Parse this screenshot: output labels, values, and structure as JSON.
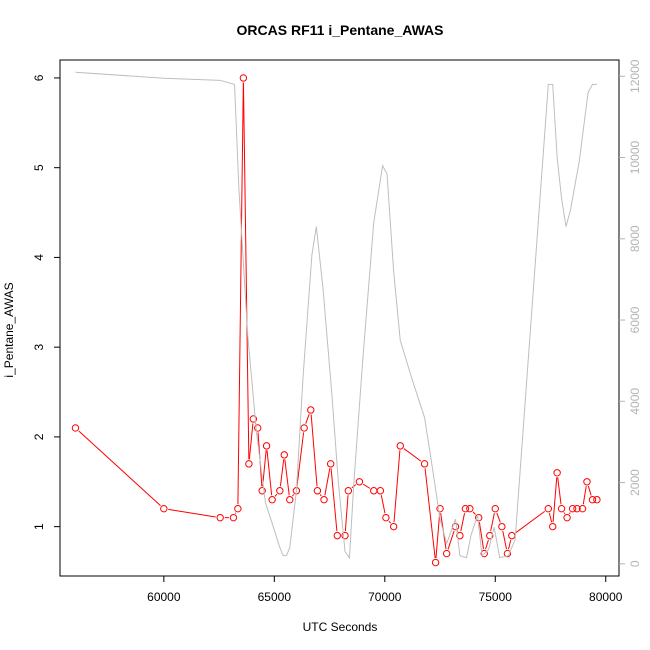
{
  "chart_data": {
    "type": "line",
    "title": "ORCAS RF11 i_Pentane_AWAS",
    "xlabel": "UTC Seconds",
    "ylabel": "i_Pentane_AWAS",
    "xlim": [
      55300,
      80600
    ],
    "ylim": [
      0.45,
      6.2
    ],
    "y2lim": [
      -300,
      12400
    ],
    "grid": false,
    "x_ticks": [
      60000,
      65000,
      70000,
      75000,
      80000
    ],
    "y_ticks": [
      1,
      2,
      3,
      4,
      5,
      6
    ],
    "y2_ticks": [
      0,
      2000,
      4000,
      6000,
      8000,
      10000,
      12000
    ],
    "series": [
      {
        "color": "#ff0000",
        "style": "line-with-open-circles",
        "x": [
          56000,
          60000,
          62550,
          63150,
          63350,
          63600,
          63850,
          64050,
          64250,
          64450,
          64650,
          64900,
          65250,
          65450,
          65700,
          66000,
          66350,
          66650,
          66950,
          67250,
          67550,
          67850,
          68200,
          68350,
          68850,
          69500,
          69800,
          70050,
          70400,
          70700,
          71800,
          72300,
          72500,
          72800,
          73200,
          73400,
          73650,
          73850,
          74250,
          74500,
          74750,
          75000,
          75300,
          75550,
          75750,
          77400,
          77600,
          77800,
          78000,
          78250,
          78500,
          78700,
          78950,
          79150,
          79400,
          79600
        ],
        "y": [
          2.1,
          1.2,
          1.1,
          1.1,
          1.2,
          6.0,
          1.7,
          2.2,
          2.1,
          1.4,
          1.9,
          1.3,
          1.4,
          1.8,
          1.3,
          1.4,
          2.1,
          2.3,
          1.4,
          1.3,
          1.7,
          0.9,
          0.9,
          1.4,
          1.5,
          1.4,
          1.4,
          1.1,
          1.0,
          1.9,
          1.7,
          0.6,
          1.2,
          0.7,
          1.0,
          0.9,
          1.2,
          1.2,
          1.1,
          0.7,
          0.9,
          1.2,
          1.0,
          0.7,
          0.9,
          1.2,
          1.0,
          1.6,
          1.2,
          1.1,
          1.2,
          1.2,
          1.2,
          1.5,
          1.3,
          1.3
        ]
      },
      {
        "color": "#bebebe",
        "axis": "right",
        "style": "line",
        "x": [
          56000,
          60000,
          62550,
          63200,
          63400,
          63800,
          64200,
          64600,
          64900,
          65250,
          65400,
          65550,
          65700,
          66000,
          66300,
          66700,
          66900,
          67200,
          67600,
          67900,
          68200,
          68400,
          68600,
          69000,
          69500,
          69900,
          70100,
          70400,
          70700,
          71200,
          71800,
          72200,
          72500,
          72800,
          73200,
          73400,
          73700,
          73900,
          74200,
          74400,
          74700,
          74950,
          75200,
          75600,
          75900,
          77400,
          77600,
          77800,
          78000,
          78200,
          78400,
          78800,
          79200,
          79400,
          79600
        ],
        "y": [
          12100,
          11950,
          11900,
          11800,
          9200,
          5600,
          3200,
          1500,
          1000,
          400,
          200,
          200,
          400,
          1800,
          4600,
          7600,
          8300,
          6800,
          4200,
          2000,
          300,
          150,
          2000,
          5000,
          8400,
          9800,
          9600,
          7200,
          5500,
          4600,
          3600,
          2200,
          1100,
          500,
          1100,
          200,
          150,
          700,
          1200,
          200,
          350,
          900,
          150,
          200,
          600,
          11800,
          11800,
          10000,
          9000,
          8300,
          8700,
          9900,
          11600,
          11800,
          11800
        ]
      }
    ]
  }
}
